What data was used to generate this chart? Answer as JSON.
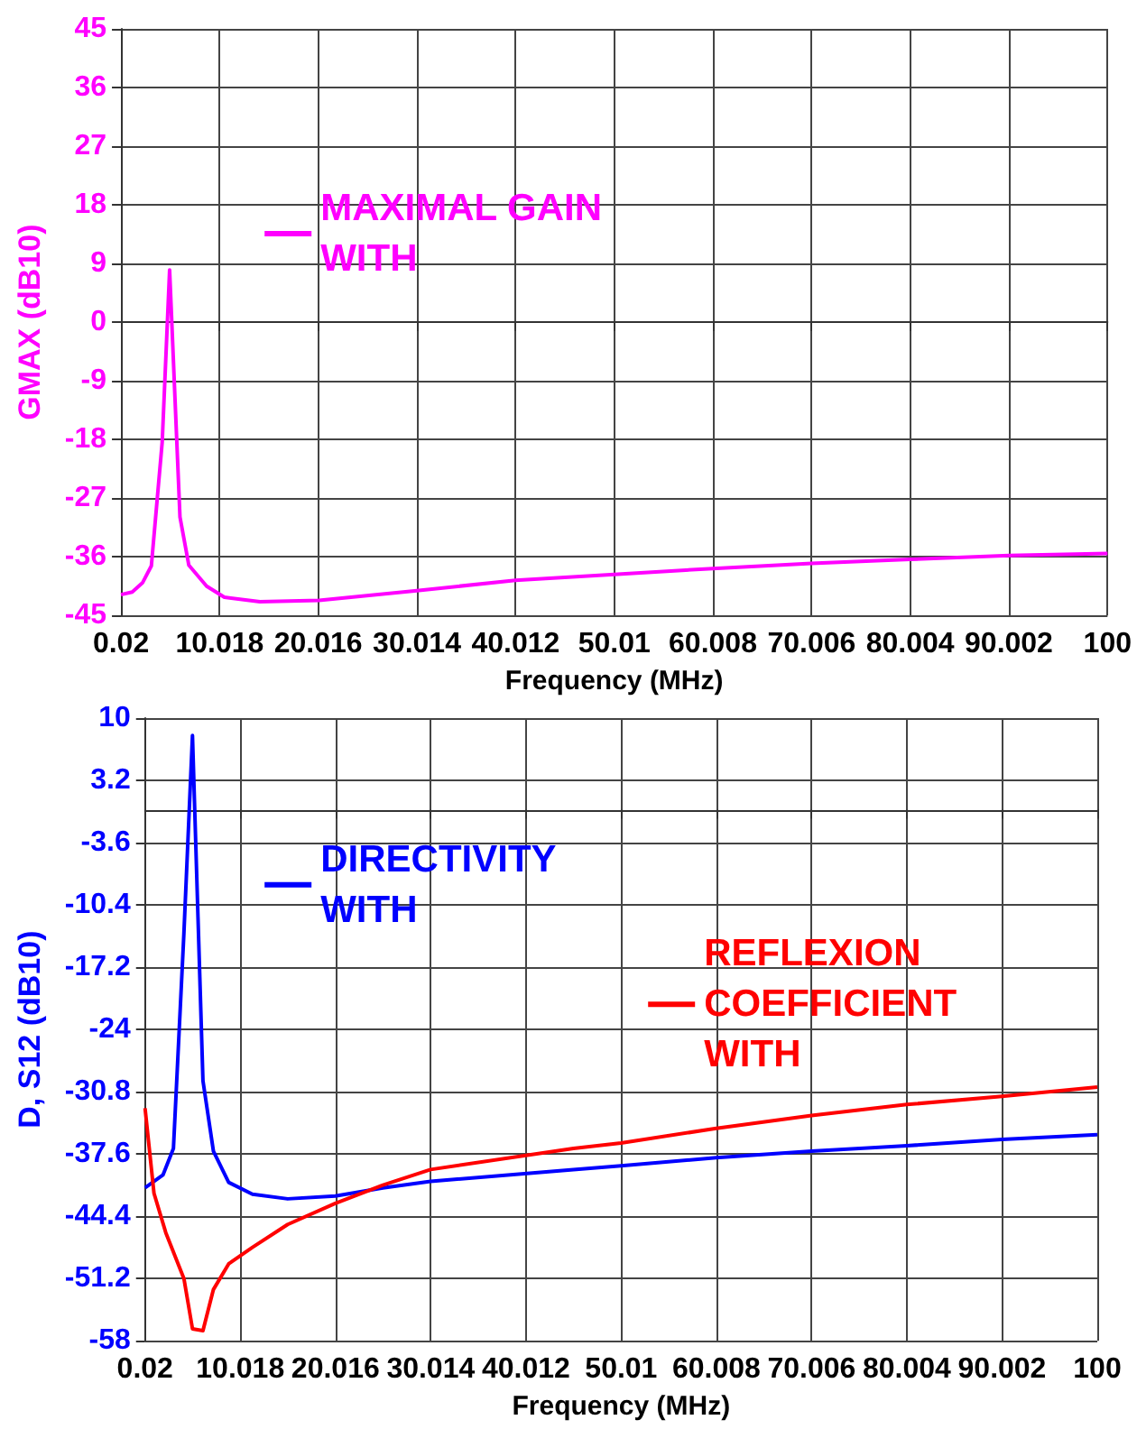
{
  "chart_data": [
    {
      "type": "line",
      "xlabel": "Frequency (MHz)",
      "ylabel": "GMAX (dB10)",
      "xlim": [
        0.02,
        100
      ],
      "xticks": [
        0.02,
        10.018,
        20.016,
        30.014,
        40.012,
        50.01,
        60.008,
        70.006,
        80.004,
        90.002,
        100
      ],
      "ylim": [
        -45,
        45
      ],
      "yticks": [
        -45,
        -36,
        -27,
        -18,
        -9,
        0,
        9,
        18,
        27,
        36,
        45
      ],
      "grid": true,
      "legend": "top left",
      "series": [
        {
          "name": "MAXIMAL GAIN WITH",
          "color": "#ff00ff",
          "x": [
            0.02,
            1.16,
            2.2,
            3.1,
            4.2,
            4.95,
            6.0,
            6.9,
            8.7,
            10.5,
            14.1,
            20.1,
            30.0,
            40.0,
            50.0,
            60.0,
            70.0,
            80.0,
            90.0,
            100
          ],
          "values": [
            -41.8,
            -41.4,
            -40.0,
            -37.4,
            -18.4,
            8.0,
            -29.9,
            -37.3,
            -40.5,
            -42.2,
            -42.9,
            -42.7,
            -41.2,
            -39.6,
            -38.7,
            -37.8,
            -37.0,
            -36.4,
            -35.8,
            -35.5
          ]
        }
      ]
    },
    {
      "type": "line",
      "xlabel": "Frequency (MHz)",
      "ylabel": "D, S12 (dB10)",
      "xlim": [
        0.02,
        100
      ],
      "xticks": [
        0.02,
        10.018,
        20.016,
        30.014,
        40.012,
        50.01,
        60.008,
        70.006,
        80.004,
        90.002,
        100
      ],
      "ylim": [
        -58,
        10
      ],
      "yticks": [
        -58,
        -51.2,
        -44.4,
        -37.6,
        -30.8,
        -24,
        -17.2,
        -10.4,
        -3.6,
        3.2,
        10
      ],
      "grid": true,
      "legend": "top",
      "series": [
        {
          "name": "DIRECTIVITY WITH",
          "color": "#0000ff",
          "x": [
            0.02,
            1.9,
            3.0,
            4.1,
            5.0,
            6.1,
            7.2,
            8.8,
            11.3,
            15.0,
            20.0,
            25.0,
            30.0,
            45.0,
            50.0,
            60.0,
            70.0,
            80.0,
            90.0,
            100
          ],
          "values": [
            -41.3,
            -39.9,
            -37.0,
            -13.5,
            8.1,
            -29.6,
            -37.3,
            -40.7,
            -42.0,
            -42.5,
            -42.2,
            -41.3,
            -40.6,
            -39.3,
            -38.9,
            -38.0,
            -37.3,
            -36.7,
            -36.0,
            -35.5
          ]
        },
        {
          "name": "REFLEXION COEFFICIENT WITH",
          "color": "#ff0000",
          "x": [
            0.02,
            0.96,
            2.2,
            4.1,
            5.0,
            6.1,
            7.2,
            8.8,
            11.3,
            15.0,
            20.0,
            25.0,
            30.0,
            45.0,
            50.0,
            60.0,
            70.0,
            80.0,
            90.0,
            100
          ],
          "values": [
            -32.6,
            -41.9,
            -46.2,
            -51.2,
            -56.7,
            -56.9,
            -52.4,
            -49.6,
            -47.8,
            -45.3,
            -43.0,
            -41.0,
            -39.3,
            -37.0,
            -36.4,
            -34.8,
            -33.4,
            -32.2,
            -31.3,
            -30.3
          ]
        }
      ]
    }
  ]
}
